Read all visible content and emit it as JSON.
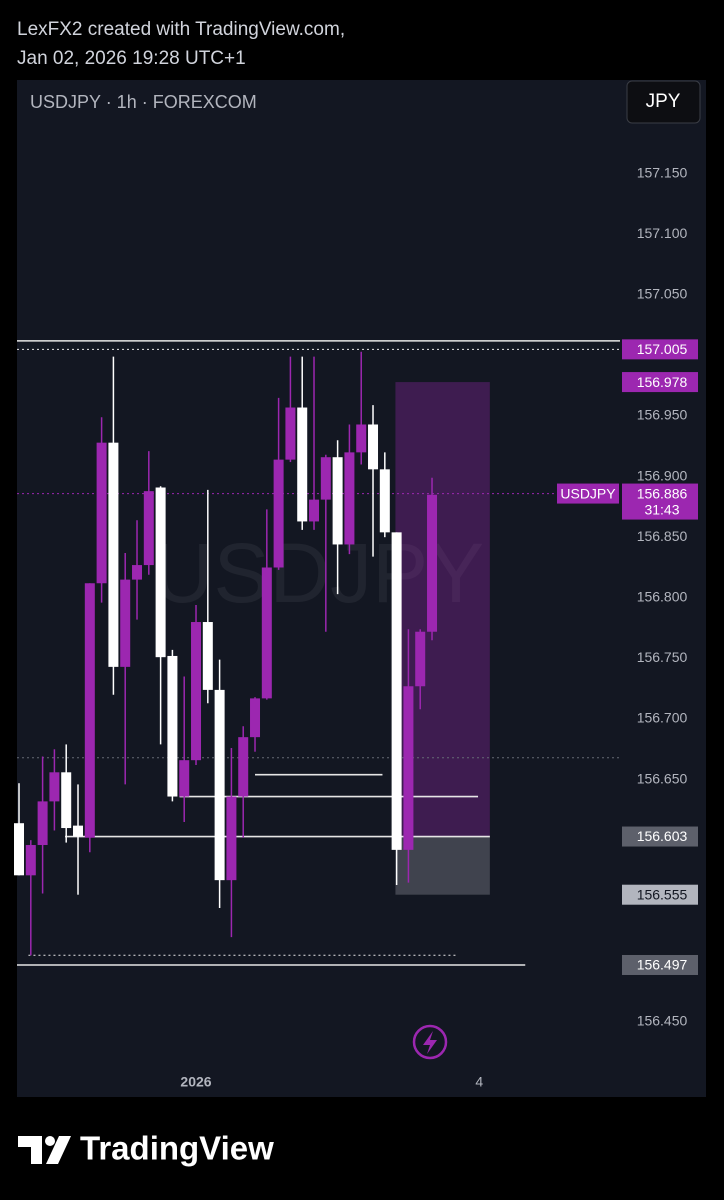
{
  "header": {
    "author_line": "LexFX2 created with TradingView.com,",
    "date_line": "Jan 02, 2026 19:28 UTC+1"
  },
  "footer": {
    "brand": "TradingView"
  },
  "chart_data": {
    "type": "candlestick",
    "title": "USDJPY · 1h · FOREXCOM",
    "currency": "JPY",
    "watermark": "USDJPY",
    "up_color": "#9c27b0",
    "down_color": "#ffffff",
    "ylim": [
      156.412,
      157.186
    ],
    "yticks": [
      {
        "value": 157.15,
        "label": "157.150"
      },
      {
        "value": 157.1,
        "label": "157.100"
      },
      {
        "value": 157.05,
        "label": "157.050"
      },
      {
        "value": 156.95,
        "label": "156.950"
      },
      {
        "value": 156.9,
        "label": "156.900"
      },
      {
        "value": 156.85,
        "label": "156.850"
      },
      {
        "value": 156.8,
        "label": "156.800"
      },
      {
        "value": 156.75,
        "label": "156.750"
      },
      {
        "value": 156.7,
        "label": "156.700"
      },
      {
        "value": 156.65,
        "label": "156.650"
      },
      {
        "value": 156.45,
        "label": "156.450"
      }
    ],
    "xlim": [
      -0.17,
      50.93
    ],
    "xticks": [
      {
        "value": 15,
        "label": "2026"
      },
      {
        "value": 39,
        "label": "4"
      }
    ],
    "open": [
      156.614,
      156.571,
      156.596,
      156.632,
      156.656,
      156.612,
      156.602,
      156.812,
      156.928,
      156.743,
      156.815,
      156.827,
      156.891,
      156.752,
      156.636,
      156.666,
      156.78,
      156.724,
      156.567,
      156.636,
      156.685,
      156.717,
      156.825,
      156.914,
      156.957,
      156.863,
      156.881,
      156.916,
      156.844,
      156.92,
      156.943,
      156.906,
      156.854,
      156.592,
      156.727,
      156.772
    ],
    "high": [
      156.647,
      156.6,
      156.669,
      156.675,
      156.679,
      156.646,
      156.812,
      156.949,
      156.999,
      156.837,
      156.864,
      156.921,
      156.892,
      156.757,
      156.735,
      156.794,
      156.889,
      156.749,
      156.676,
      156.694,
      156.718,
      156.873,
      156.965,
      156.999,
      156.999,
      156.999,
      156.918,
      156.93,
      156.943,
      157.003,
      156.959,
      156.92,
      156.854,
      156.774,
      156.774,
      156.899
    ],
    "low": [
      156.571,
      156.505,
      156.556,
      156.608,
      156.598,
      156.555,
      156.59,
      156.796,
      156.72,
      156.646,
      156.782,
      156.819,
      156.679,
      156.632,
      156.615,
      156.662,
      156.713,
      156.544,
      156.52,
      156.602,
      156.673,
      156.716,
      156.823,
      156.912,
      156.856,
      156.856,
      156.772,
      156.803,
      156.836,
      156.91,
      156.834,
      156.85,
      156.563,
      156.565,
      156.708,
      156.765
    ],
    "close": [
      156.571,
      156.596,
      156.632,
      156.656,
      156.61,
      156.603,
      156.812,
      156.928,
      156.743,
      156.815,
      156.827,
      156.888,
      156.751,
      156.636,
      156.666,
      156.78,
      156.724,
      156.567,
      156.636,
      156.685,
      156.717,
      156.825,
      156.914,
      156.957,
      156.863,
      156.881,
      156.916,
      156.844,
      156.92,
      156.943,
      156.906,
      156.854,
      156.592,
      156.727,
      156.772,
      156.885
    ],
    "lines": [
      {
        "value": 157.012,
        "style": "solid",
        "color": "#e6e6e6",
        "from": -0.17,
        "to": 50.93
      },
      {
        "value": 157.005,
        "style": "dotted",
        "color": "#e6e6e6",
        "from": -0.17,
        "to": 50.93,
        "tag_color": "#9c27b0"
      },
      {
        "value": 156.668,
        "style": "dotted",
        "color": "#666a75",
        "from": -0.17,
        "to": 50.93
      },
      {
        "value": 156.654,
        "style": "solid",
        "color": "#e6e6e6",
        "from": 20,
        "to": 30.8
      },
      {
        "value": 156.636,
        "style": "solid",
        "color": "#e6e6e6",
        "from": 13.6,
        "to": 38.9
      },
      {
        "value": 156.603,
        "style": "solid",
        "color": "#e6e6e6",
        "from": 3.9,
        "to": 39.9
      },
      {
        "value": 156.505,
        "style": "dotted",
        "color": "#e6e6e6",
        "from": 0.8,
        "to": 37
      },
      {
        "value": 156.497,
        "style": "solid",
        "color": "#e6e6e6",
        "from": -0.17,
        "to": 42.9,
        "tag_color": "#5d606b"
      }
    ],
    "position": {
      "target": 156.978,
      "entry": 156.603,
      "stop": 156.555,
      "from": 31.9,
      "to": 39.9
    },
    "current": {
      "name": "USDJPY",
      "value": 156.886,
      "countdown": "31:43",
      "color": "#9c27b0"
    }
  }
}
